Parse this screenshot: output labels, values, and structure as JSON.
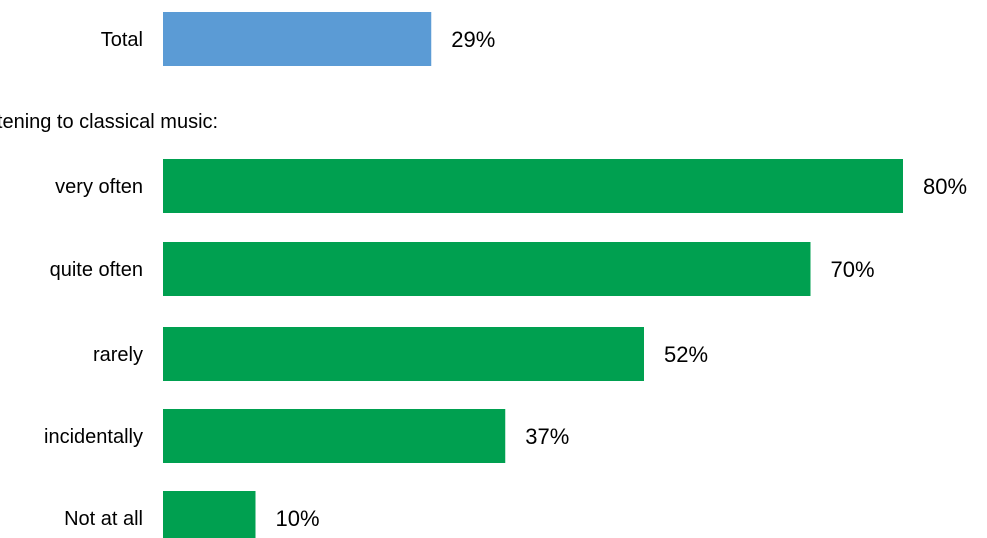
{
  "chart_data": {
    "type": "bar",
    "orientation": "horizontal",
    "group_label": "listening to classical music:",
    "categories": [
      "Total",
      "very often",
      "quite often",
      "rarely",
      "incidentally",
      "Not at all"
    ],
    "values": [
      29,
      80,
      70,
      52,
      37,
      10
    ],
    "value_labels": [
      "29%",
      "80%",
      "70%",
      "52%",
      "37%",
      "10%"
    ],
    "unit": "%",
    "colors": [
      "#5B9BD5",
      "#00A050",
      "#00A050",
      "#00A050",
      "#00A050",
      "#00A050"
    ],
    "xlim": [
      0,
      80
    ],
    "grid": false,
    "legend": "none"
  }
}
